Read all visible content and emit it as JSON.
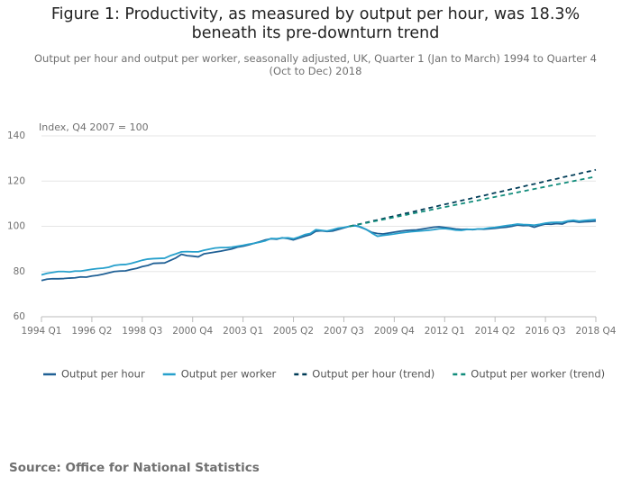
{
  "chart_data": {
    "type": "line",
    "title": "Figure 1: Productivity, as measured by output per hour, was 18.3% beneath its pre-downturn trend",
    "subtitle": "Output per hour and output per worker, seasonally adjusted, UK, Quarter 1 (Jan to March) 1994 to Quarter 4 (Oct to Dec) 2018",
    "y_label": "Index, Q4 2007 = 100",
    "source": "Source: Office for National Statistics",
    "categories": [
      "1994 Q1",
      null,
      null,
      null,
      null,
      null,
      null,
      null,
      null,
      "1996 Q2",
      null,
      null,
      null,
      null,
      null,
      null,
      null,
      null,
      "1998 Q3",
      null,
      null,
      null,
      null,
      null,
      null,
      null,
      null,
      "2000 Q4",
      null,
      null,
      null,
      null,
      null,
      null,
      null,
      null,
      "2003 Q1",
      null,
      null,
      null,
      null,
      null,
      null,
      null,
      null,
      "2005 Q2",
      null,
      null,
      null,
      null,
      null,
      null,
      null,
      null,
      "2007 Q3",
      null,
      null,
      null,
      null,
      null,
      null,
      null,
      null,
      "2009 Q4",
      null,
      null,
      null,
      null,
      null,
      null,
      null,
      null,
      "2012 Q1",
      null,
      null,
      null,
      null,
      null,
      null,
      null,
      null,
      "2014 Q2",
      null,
      null,
      null,
      null,
      null,
      null,
      null,
      null,
      "2016 Q3",
      null,
      null,
      null,
      null,
      null,
      null,
      null,
      null,
      "2018 Q4"
    ],
    "ylim": [
      60,
      140
    ],
    "yticks": [
      60,
      80,
      100,
      120,
      140
    ],
    "grid": true,
    "legend": "bottom",
    "series": [
      {
        "name": "Output per hour",
        "color": "#206095",
        "dashed": false,
        "values": [
          76.0,
          76.6,
          76.8,
          76.8,
          76.9,
          77.1,
          77.2,
          77.6,
          77.5,
          78.0,
          78.3,
          78.8,
          79.4,
          80.0,
          80.2,
          80.3,
          80.9,
          81.4,
          82.2,
          82.7,
          83.6,
          83.7,
          83.8,
          84.9,
          86.0,
          87.6,
          87.0,
          86.8,
          86.5,
          87.8,
          88.2,
          88.6,
          89.0,
          89.5,
          90.0,
          90.8,
          91.2,
          91.8,
          92.5,
          93.2,
          94.0,
          94.5,
          94.3,
          94.9,
          94.6,
          94.0,
          94.8,
          95.6,
          96.3,
          97.8,
          98.0,
          97.7,
          97.9,
          98.6,
          99.3,
          100.0,
          100.4,
          99.6,
          98.6,
          97.3,
          96.8,
          96.6,
          97.0,
          97.4,
          97.8,
          98.1,
          98.3,
          98.4,
          98.8,
          99.2,
          99.6,
          99.8,
          99.5,
          99.2,
          98.8,
          98.6,
          98.7,
          98.5,
          98.8,
          98.7,
          98.9,
          99.1,
          99.4,
          99.6,
          100.0,
          100.6,
          100.3,
          100.4,
          99.6,
          100.4,
          101.0,
          100.9,
          101.2,
          101.0,
          102.0,
          102.2,
          101.8,
          102.0,
          102.1,
          102.3
        ]
      },
      {
        "name": "Output per worker",
        "color": "#27a0cc",
        "dashed": false,
        "values": [
          78.5,
          79.2,
          79.6,
          80.0,
          80.0,
          79.8,
          80.2,
          80.2,
          80.6,
          81.0,
          81.3,
          81.5,
          81.9,
          82.7,
          83.0,
          83.1,
          83.6,
          84.3,
          85.0,
          85.5,
          85.7,
          85.8,
          85.9,
          87.0,
          87.8,
          88.7,
          88.8,
          88.7,
          88.7,
          89.4,
          89.9,
          90.4,
          90.6,
          90.6,
          90.8,
          91.2,
          91.6,
          92.1,
          92.5,
          93.0,
          93.6,
          94.6,
          94.5,
          94.8,
          94.9,
          94.5,
          95.3,
          96.3,
          96.8,
          98.5,
          98.2,
          97.9,
          98.5,
          99.2,
          99.5,
          100.0,
          100.2,
          99.8,
          98.6,
          97.0,
          95.6,
          96.0,
          96.3,
          96.6,
          97.0,
          97.3,
          97.6,
          97.8,
          98.0,
          98.2,
          98.5,
          98.9,
          99.0,
          98.7,
          98.3,
          98.2,
          98.6,
          98.6,
          98.8,
          98.9,
          99.3,
          99.5,
          99.9,
          100.3,
          100.6,
          101.0,
          100.8,
          100.7,
          100.5,
          100.9,
          101.4,
          101.7,
          101.8,
          101.8,
          102.4,
          102.7,
          102.3,
          102.6,
          102.8,
          103.0
        ]
      },
      {
        "name": "Output per hour (trend)",
        "color": "#003c57",
        "dashed": true,
        "values": [
          null,
          null,
          null,
          null,
          null,
          null,
          null,
          null,
          null,
          null,
          null,
          null,
          null,
          null,
          null,
          null,
          null,
          null,
          null,
          null,
          null,
          null,
          null,
          null,
          null,
          null,
          null,
          null,
          null,
          null,
          null,
          null,
          null,
          null,
          null,
          null,
          null,
          null,
          null,
          null,
          null,
          null,
          null,
          null,
          null,
          null,
          null,
          null,
          null,
          null,
          null,
          null,
          null,
          null,
          null,
          100.0,
          100.6,
          101.1,
          101.7,
          102.3,
          102.8,
          103.4,
          104.0,
          104.5,
          105.1,
          105.7,
          106.2,
          106.8,
          107.4,
          108.0,
          108.5,
          109.1,
          109.7,
          110.2,
          110.8,
          111.4,
          111.9,
          112.5,
          113.1,
          113.6,
          114.2,
          114.8,
          115.3,
          115.9,
          116.5,
          117.0,
          117.6,
          118.2,
          118.7,
          119.3,
          119.9,
          120.5,
          121.0,
          121.6,
          122.2,
          122.7,
          123.3,
          123.9,
          124.4,
          125.0
        ]
      },
      {
        "name": "Output per worker (trend)",
        "color": "#118c7b",
        "dashed": true,
        "values": [
          null,
          null,
          null,
          null,
          null,
          null,
          null,
          null,
          null,
          null,
          null,
          null,
          null,
          null,
          null,
          null,
          null,
          null,
          null,
          null,
          null,
          null,
          null,
          null,
          null,
          null,
          null,
          null,
          null,
          null,
          null,
          null,
          null,
          null,
          null,
          null,
          null,
          null,
          null,
          null,
          null,
          null,
          null,
          null,
          null,
          null,
          null,
          null,
          null,
          null,
          null,
          null,
          null,
          null,
          null,
          100.0,
          100.5,
          101.0,
          101.5,
          102.0,
          102.5,
          103.0,
          103.5,
          104.0,
          104.5,
          105.0,
          105.5,
          106.0,
          106.5,
          107.0,
          107.5,
          108.0,
          108.5,
          109.0,
          109.5,
          110.0,
          110.5,
          111.0,
          111.5,
          112.0,
          112.5,
          113.0,
          113.5,
          114.0,
          114.5,
          115.0,
          115.5,
          116.0,
          116.5,
          117.0,
          117.5,
          118.0,
          118.5,
          119.0,
          119.5,
          120.0,
          120.5,
          121.0,
          121.5,
          122.0
        ]
      }
    ]
  }
}
